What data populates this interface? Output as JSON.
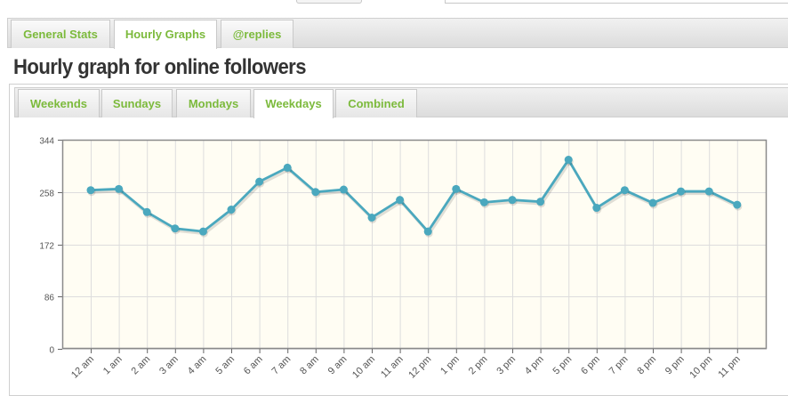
{
  "main_tabs": [
    {
      "label": "General Stats",
      "active": false
    },
    {
      "label": "Hourly Graphs",
      "active": true
    },
    {
      "label": "@replies",
      "active": false
    }
  ],
  "page_title": "Hourly graph for online followers",
  "sub_tabs": [
    {
      "label": "Weekends",
      "active": false
    },
    {
      "label": "Sundays",
      "active": false
    },
    {
      "label": "Mondays",
      "active": false
    },
    {
      "label": "Weekdays",
      "active": true
    },
    {
      "label": "Combined",
      "active": false
    }
  ],
  "colors": {
    "accent": "#7cba3c",
    "series_line": "#4aa8be",
    "plot_background": "#fffdf3",
    "grid": "#dddddd"
  },
  "chart_data": {
    "type": "line",
    "categories": [
      "12 am",
      "1 am",
      "2 am",
      "3 am",
      "4 am",
      "5 am",
      "6 am",
      "7 am",
      "8 am",
      "9 am",
      "10 am",
      "11 am",
      "12 pm",
      "1 pm",
      "2 pm",
      "3 pm",
      "4 pm",
      "5 pm",
      "6 pm",
      "7 pm",
      "8 pm",
      "9 pm",
      "10 pm",
      "11 pm"
    ],
    "series": [
      {
        "values": [
          261,
          263,
          225,
          198,
          193,
          229,
          275,
          298,
          258,
          262,
          216,
          245,
          193,
          263,
          241,
          245,
          242,
          311,
          232,
          261,
          240,
          259,
          259,
          237
        ]
      }
    ],
    "yticks": [
      0,
      86,
      172,
      258,
      344
    ],
    "ylim": [
      0,
      344
    ],
    "grid": true,
    "title": "",
    "xlabel": "",
    "ylabel": ""
  }
}
